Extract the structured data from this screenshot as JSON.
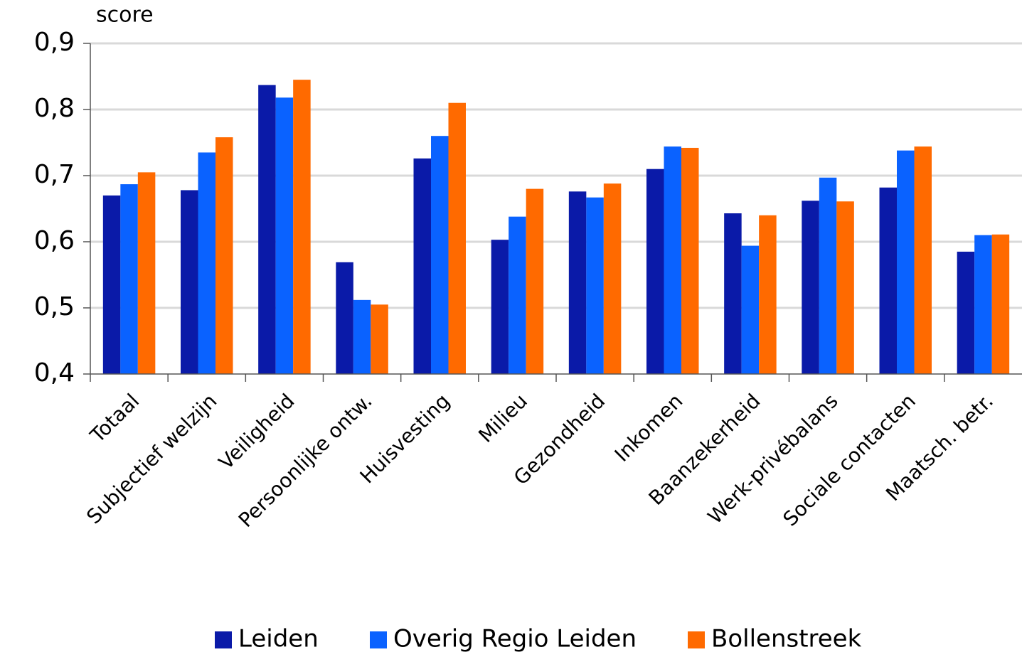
{
  "chart_data": {
    "type": "bar",
    "y_label": "score",
    "categories": [
      "Totaal",
      "Subjectief welzijn",
      "Veiligheid",
      "Persoonlijke ontw.",
      "Huisvesting",
      "Milieu",
      "Gezondheid",
      "Inkomen",
      "Baanzekerheid",
      "Werk-privébalans",
      "Sociale contacten",
      "Maatsch. betr."
    ],
    "series": [
      {
        "name": "Leiden",
        "color": "#0a1aa8",
        "values": [
          0.67,
          0.678,
          0.837,
          0.569,
          0.726,
          0.603,
          0.676,
          0.71,
          0.643,
          0.662,
          0.682,
          0.585
        ]
      },
      {
        "name": "Overig Regio Leiden",
        "color": "#0a62ff",
        "values": [
          0.687,
          0.735,
          0.818,
          0.512,
          0.76,
          0.638,
          0.667,
          0.744,
          0.594,
          0.697,
          0.738,
          0.61
        ]
      },
      {
        "name": "Bollenstreek",
        "color": "#ff6a00",
        "values": [
          0.705,
          0.758,
          0.845,
          0.505,
          0.81,
          0.68,
          0.688,
          0.742,
          0.64,
          0.661,
          0.744,
          0.611
        ]
      }
    ],
    "ylim": [
      0.4,
      0.9
    ],
    "yticks": [
      {
        "value": 0.4,
        "label": "0,4"
      },
      {
        "value": 0.5,
        "label": "0,5"
      },
      {
        "value": 0.6,
        "label": "0,6"
      },
      {
        "value": 0.7,
        "label": "0,7"
      },
      {
        "value": 0.8,
        "label": "0,8"
      },
      {
        "value": 0.9,
        "label": "0,9"
      }
    ],
    "grid": true,
    "legend": "bottom"
  }
}
